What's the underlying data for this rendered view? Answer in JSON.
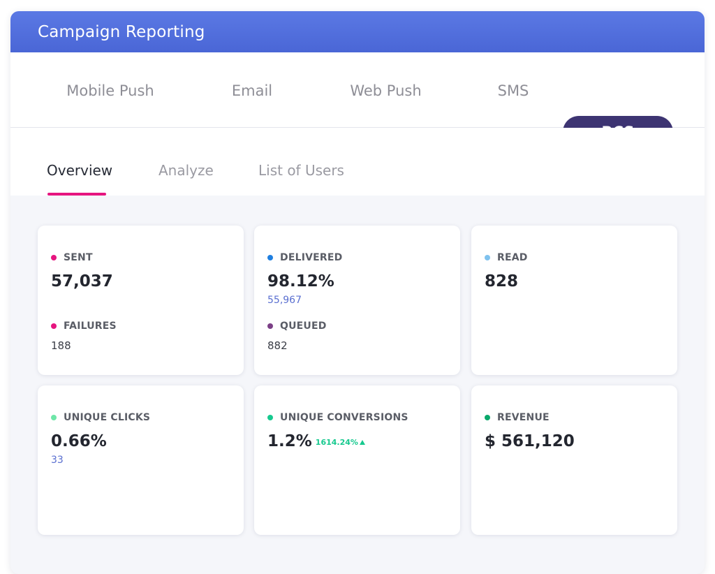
{
  "header": {
    "title": "Campaign Reporting"
  },
  "channels": [
    {
      "label": "Mobile Push",
      "active": false
    },
    {
      "label": "Email",
      "active": false
    },
    {
      "label": "Web Push",
      "active": false
    },
    {
      "label": "SMS",
      "active": false
    },
    {
      "label": "RCS",
      "active": true
    }
  ],
  "subtabs": [
    {
      "label": "Overview",
      "active": true
    },
    {
      "label": "Analyze",
      "active": false
    },
    {
      "label": "List of Users",
      "active": false
    }
  ],
  "cards": {
    "sent": {
      "label": "SENT",
      "value": "57,037",
      "dot": "#e6157f"
    },
    "failures": {
      "label": "FAILURES",
      "value": "188",
      "dot": "#e6157f"
    },
    "delivered": {
      "label": "DELIVERED",
      "value": "98.12%",
      "sub": "55,967",
      "dot": "#1f7fe0"
    },
    "queued": {
      "label": "QUEUED",
      "value": "882",
      "dot": "#7b3f86"
    },
    "read": {
      "label": "READ",
      "value": "828",
      "dot": "#7fc2ee"
    },
    "unique_clicks": {
      "label": "UNIQUE CLICKS",
      "value": "0.66%",
      "sub": "33",
      "dot": "#6ee6a8"
    },
    "unique_conversions": {
      "label": "UNIQUE CONVERSIONS",
      "value": "1.2%",
      "delta": "1614.24%",
      "delta_icon": "arrow-up-icon",
      "dot": "#17c98f"
    },
    "revenue": {
      "label": "REVENUE",
      "value": "$ 561,120",
      "dot": "#0aa86b"
    }
  },
  "colors": {
    "header_gradient_top": "#5b79e4",
    "header_gradient_bottom": "#4a66d6",
    "active_channel": "#3d3472",
    "active_tab_underline": "#e6157f",
    "delta_positive": "#17c98f"
  }
}
